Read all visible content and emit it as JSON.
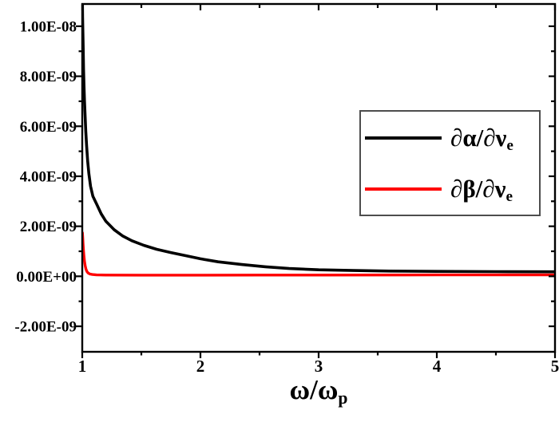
{
  "chart_data": {
    "type": "line",
    "title": "",
    "xlabel_main": "ω/ω",
    "xlabel_sub": "p",
    "ylabel": "",
    "xlim": [
      1,
      5
    ],
    "ylim": [
      -3.02e-09,
      1.089e-08
    ],
    "grid": false,
    "legend_position": "upper right",
    "axis_color": "#000000",
    "background_color": "#ffffff",
    "xticks": [
      {
        "v": 1,
        "label": "1"
      },
      {
        "v": 2,
        "label": "2"
      },
      {
        "v": 3,
        "label": "3"
      },
      {
        "v": 4,
        "label": "4"
      },
      {
        "v": 5,
        "label": "5"
      }
    ],
    "xminor": [
      1.5,
      2.5,
      3.5,
      4.5
    ],
    "yticks": [
      {
        "v": 1e-08,
        "label": "1.00E-08"
      },
      {
        "v": 8e-09,
        "label": "8.00E-09"
      },
      {
        "v": 6e-09,
        "label": "6.00E-09"
      },
      {
        "v": 4e-09,
        "label": "4.00E-09"
      },
      {
        "v": 2e-09,
        "label": "2.00E-09"
      },
      {
        "v": 0.0,
        "label": "0.00E+00"
      },
      {
        "v": -2e-09,
        "label": "-2.00E-09"
      }
    ],
    "yminor": [
      9e-09,
      7e-09,
      5e-09,
      3e-09,
      1e-09,
      -1e-09
    ],
    "series": [
      {
        "name": "alpha",
        "label_main": "∂α/∂ν",
        "label_sub": "e",
        "color": "#000000",
        "width": 3.6,
        "points": [
          [
            1.0015,
            1.1e-08
          ],
          [
            1.003,
            1.04e-08
          ],
          [
            1.005,
            9.9e-09
          ],
          [
            1.008,
            9.1e-09
          ],
          [
            1.011,
            8.3e-09
          ],
          [
            1.015,
            7.6e-09
          ],
          [
            1.019,
            7e-09
          ],
          [
            1.024,
            6.4e-09
          ],
          [
            1.03,
            5.8e-09
          ],
          [
            1.037,
            5.2e-09
          ],
          [
            1.046,
            4.6e-09
          ],
          [
            1.056,
            4.1e-09
          ],
          [
            1.07,
            3.6e-09
          ],
          [
            1.09,
            3.2e-09
          ],
          [
            1.12,
            2.9e-09
          ],
          [
            1.16,
            2.5e-09
          ],
          [
            1.2,
            2.2e-09
          ],
          [
            1.27,
            1.86e-09
          ],
          [
            1.34,
            1.62e-09
          ],
          [
            1.42,
            1.42e-09
          ],
          [
            1.52,
            1.24e-09
          ],
          [
            1.63,
            1.08e-09
          ],
          [
            1.75,
            9.5e-10
          ],
          [
            1.88,
            8.2e-10
          ],
          [
            2.0,
            7e-10
          ],
          [
            2.15,
            5.8e-10
          ],
          [
            2.35,
            4.7e-10
          ],
          [
            2.55,
            3.8e-10
          ],
          [
            2.75,
            3.1e-10
          ],
          [
            3.0,
            2.6e-10
          ],
          [
            3.3,
            2.3e-10
          ],
          [
            3.6,
            2.1e-10
          ],
          [
            4.0,
            1.95e-10
          ],
          [
            4.5,
            1.85e-10
          ],
          [
            5.0,
            1.8e-10
          ]
        ]
      },
      {
        "name": "beta",
        "label_main": "∂β/∂ν",
        "label_sub": "e",
        "color": "#ff0000",
        "width": 3.4,
        "points": [
          [
            1.0015,
            1.74e-09
          ],
          [
            1.004,
            1.55e-09
          ],
          [
            1.007,
            1.3e-09
          ],
          [
            1.01,
            1.05e-09
          ],
          [
            1.014,
            8.2e-10
          ],
          [
            1.019,
            6e-10
          ],
          [
            1.025,
            4.2e-10
          ],
          [
            1.032,
            2.8e-10
          ],
          [
            1.04,
            1.9e-10
          ],
          [
            1.05,
            1.3e-10
          ],
          [
            1.065,
            9e-11
          ],
          [
            1.085,
            7e-11
          ],
          [
            1.12,
            5.5e-11
          ],
          [
            1.2,
            5e-11
          ],
          [
            1.5,
            4.5e-11
          ],
          [
            2.0,
            4.5e-11
          ],
          [
            2.5,
            5e-11
          ],
          [
            3.0,
            5e-11
          ],
          [
            4.0,
            5.5e-11
          ],
          [
            5.0,
            5.5e-11
          ]
        ]
      }
    ]
  }
}
